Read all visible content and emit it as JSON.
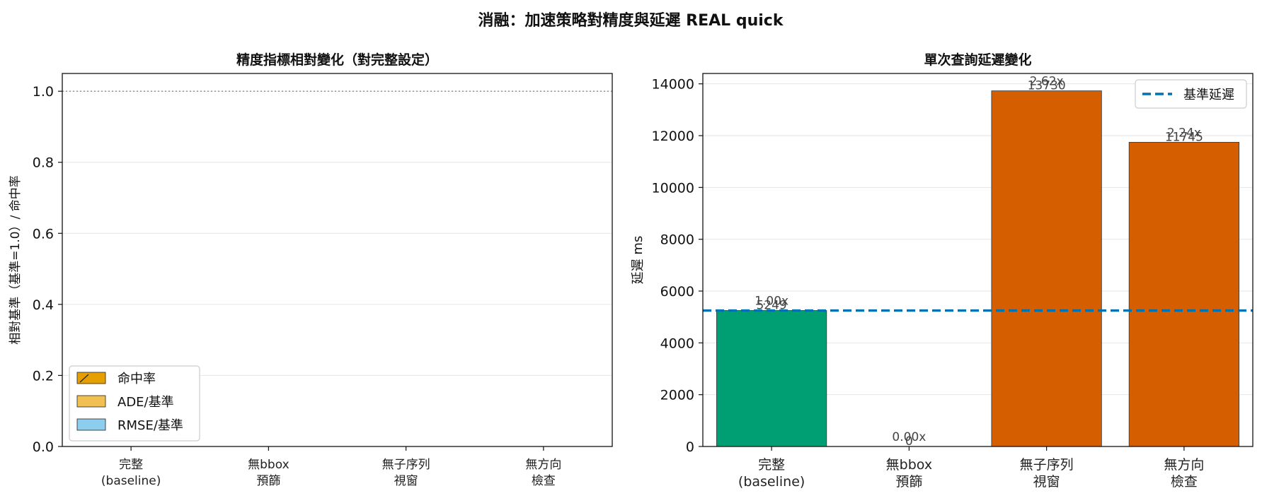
{
  "figure_title": "消融：加速策略對精度與延遲 REAL quick",
  "colors": {
    "baseline_bar": "#009E73",
    "ablation_bar": "#D55E00",
    "baseline_line": "#0072B2",
    "hit_rate": "#E69F00",
    "ade": "#F0C050",
    "rmse": "#8DCDEE",
    "ref_line": "#999999",
    "grid": "#e6e6e6",
    "value_text": "#444444"
  },
  "chart_data": [
    {
      "type": "bar",
      "title": "精度指標相對變化（對完整設定）",
      "ylabel": "相對基準（基準=1.0）/ 命中率",
      "categories": [
        "完整\n(baseline)",
        "無bbox\n預篩",
        "無子序列\n視窗",
        "無方向\n檢查"
      ],
      "ylim": [
        0,
        1.05
      ],
      "yticks": [
        "0.0",
        "0.2",
        "0.4",
        "0.6",
        "0.8",
        "1.0"
      ],
      "ytick_values": [
        0,
        0.2,
        0.4,
        0.6,
        0.8,
        1.0
      ],
      "reference_line": 1.0,
      "grid": true,
      "legend_position": "lower-left",
      "series": [
        {
          "name": "命中率",
          "values": [
            0,
            0,
            0,
            0
          ]
        },
        {
          "name": "ADE/基準",
          "values": [
            0,
            0,
            0,
            0
          ]
        },
        {
          "name": "RMSE/基準",
          "values": [
            0,
            0,
            0,
            0
          ]
        }
      ]
    },
    {
      "type": "bar",
      "title": "單次查詢延遲變化",
      "ylabel": "延遲 ms",
      "categories": [
        "完整\n(baseline)",
        "無bbox\n預篩",
        "無子序列\n視窗",
        "無方向\n檢查"
      ],
      "values": [
        5249,
        0,
        13730,
        11745
      ],
      "ratio_labels": [
        "1.00x",
        "0.00x",
        "2.62x",
        "2.24x"
      ],
      "value_labels": [
        "5249",
        "0",
        "13730",
        "11745"
      ],
      "ylim": [
        0,
        14400
      ],
      "yticks": [
        "0",
        "2000",
        "4000",
        "6000",
        "8000",
        "10000",
        "12000",
        "14000"
      ],
      "ytick_values": [
        0,
        2000,
        4000,
        6000,
        8000,
        10000,
        12000,
        14000
      ],
      "baseline_value": 5249,
      "legend": [
        "基準延遲"
      ],
      "legend_position": "top-right",
      "grid": true
    }
  ]
}
